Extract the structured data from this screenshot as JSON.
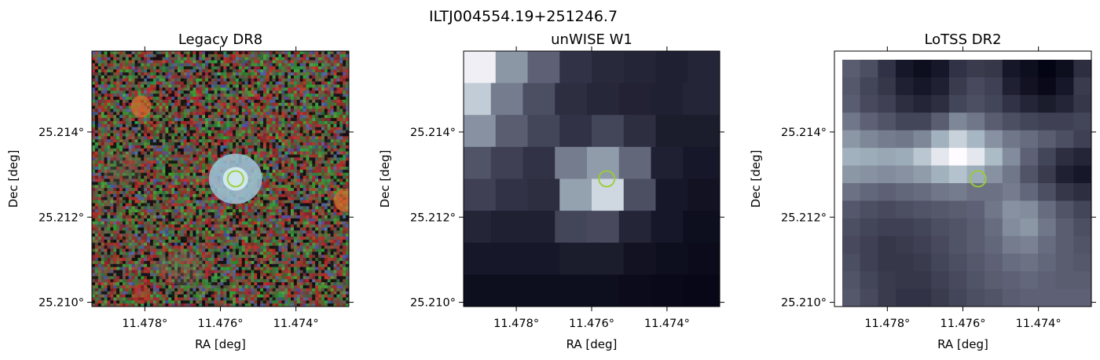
{
  "figure": {
    "suptitle": "ILTJ004554.19+251246.7"
  },
  "chart_data": [
    {
      "type": "heatmap",
      "title": "Legacy DR8",
      "xlabel": "RA [deg]",
      "ylabel": "Dec [deg]",
      "xlim": [
        11.4794,
        11.4726
      ],
      "ylim": [
        25.2099,
        25.2159
      ],
      "x_ticks": [
        11.478,
        11.476,
        11.474
      ],
      "x_tick_labels": [
        "11.478°",
        "11.476°",
        "11.474°"
      ],
      "y_ticks": [
        25.21,
        25.212,
        25.214
      ],
      "y_tick_labels": [
        "25.210°",
        "25.212°",
        "25.214°"
      ],
      "colormap": "rgb-composite",
      "marker": {
        "shape": "circle",
        "ra": 11.4756,
        "dec": 25.2129,
        "color": "#9ACD32"
      }
    },
    {
      "type": "heatmap",
      "title": "unWISE W1",
      "xlabel": "RA [deg]",
      "ylabel": "Dec [deg]",
      "xlim": [
        11.4794,
        11.4726
      ],
      "ylim": [
        25.2099,
        25.2159
      ],
      "x_ticks": [
        11.478,
        11.476,
        11.474
      ],
      "x_tick_labels": [
        "11.478°",
        "11.476°",
        "11.474°"
      ],
      "y_ticks": [
        25.21,
        25.212,
        25.214
      ],
      "y_tick_labels": [
        "25.210°",
        "25.212°",
        "25.214°"
      ],
      "colormap": "bone",
      "marker": {
        "shape": "circle",
        "ra": 11.4756,
        "dec": 25.2129,
        "color": "#9ACD32"
      }
    },
    {
      "type": "heatmap",
      "title": "LoTSS DR2",
      "xlabel": "RA [deg]",
      "ylabel": "Dec [deg]",
      "xlim": [
        11.4794,
        11.4726
      ],
      "ylim": [
        25.2099,
        25.2159
      ],
      "x_ticks": [
        11.478,
        11.476,
        11.474
      ],
      "x_tick_labels": [
        "11.478°",
        "11.476°",
        "11.474°"
      ],
      "y_ticks": [
        25.21,
        25.212,
        25.214
      ],
      "y_tick_labels": [
        "25.210°",
        "25.212°",
        "25.214°"
      ],
      "colormap": "bone",
      "marker": {
        "shape": "circle",
        "ra": 11.4756,
        "dec": 25.2129,
        "color": "#9ACD32"
      }
    }
  ]
}
